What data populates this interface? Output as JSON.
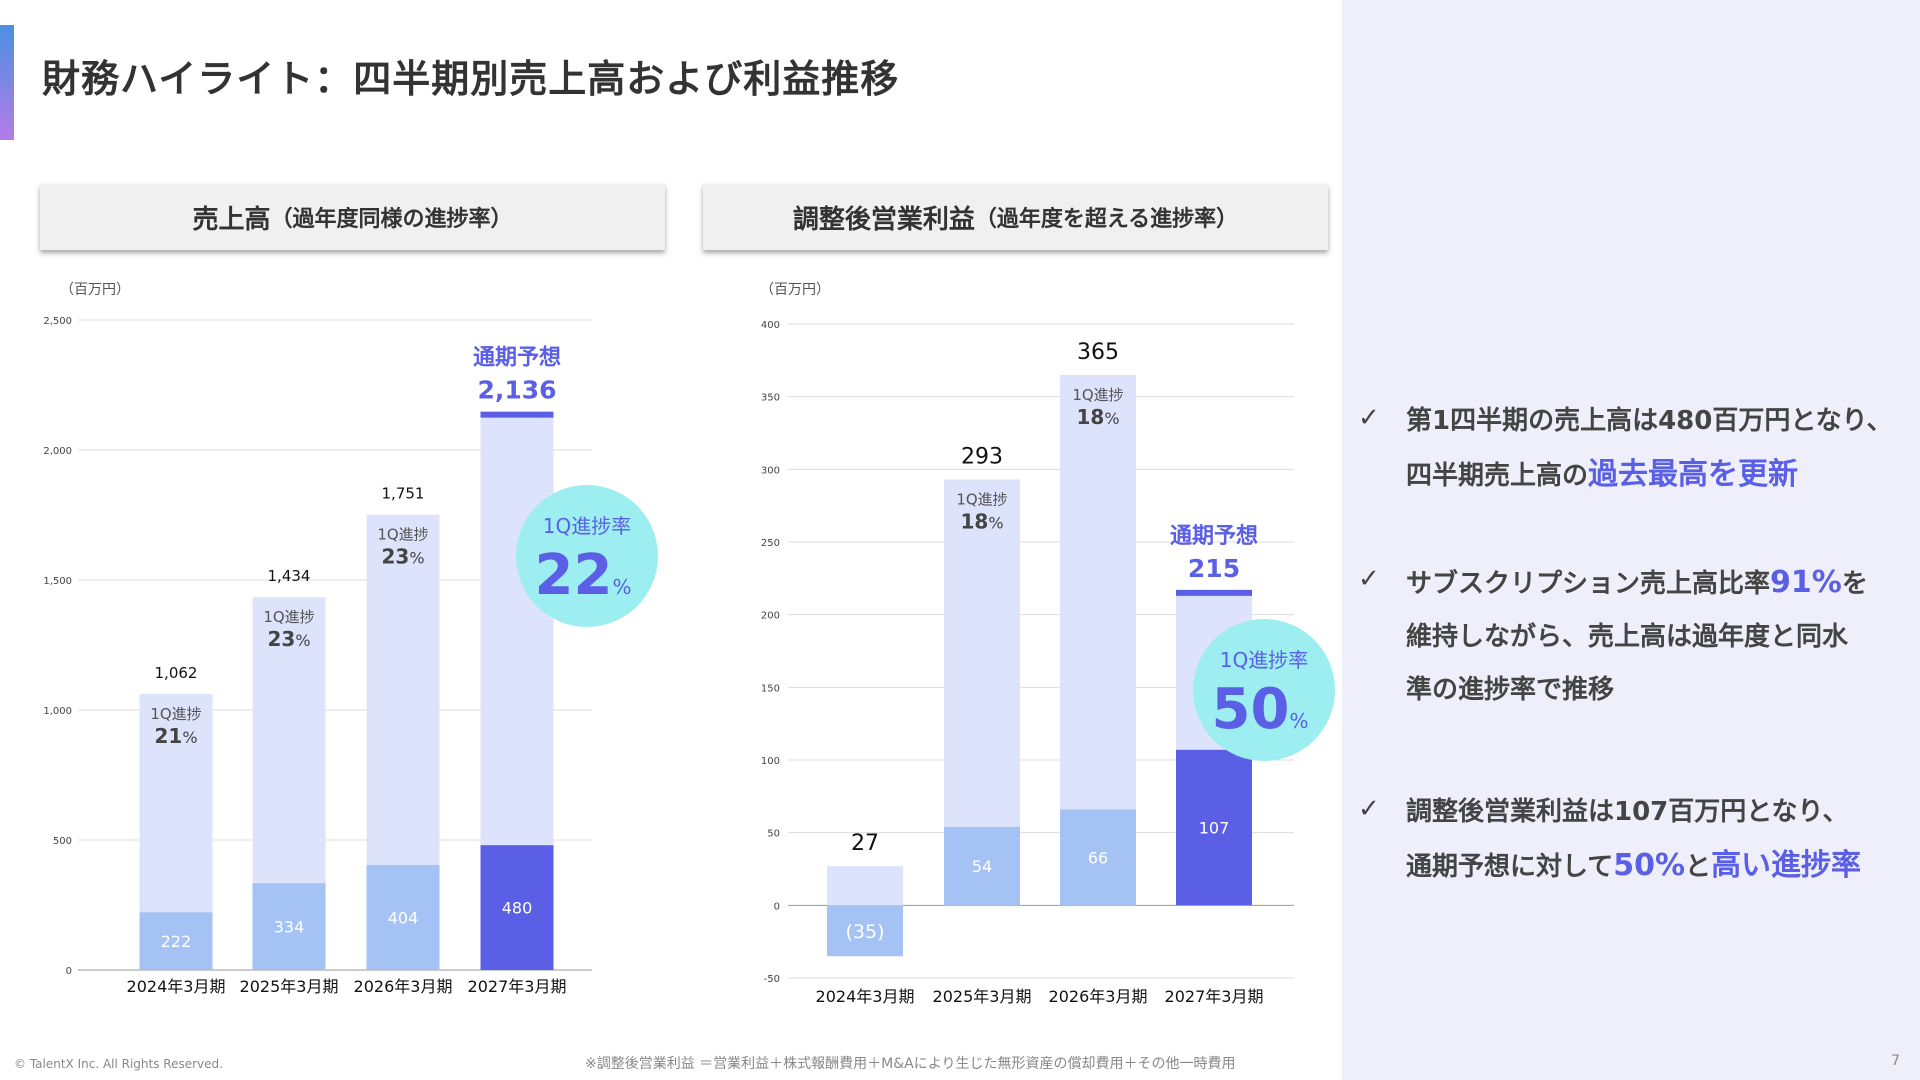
{
  "title": "財務ハイライト：四半期別売上高および利益推移",
  "panels": {
    "revenue_main": "売上高",
    "revenue_sub": "（過年度同様の進捗率）",
    "profit_main": "調整後営業利益",
    "profit_sub": "（過年度を超える進捗率）"
  },
  "colors": {
    "accent": "#5b5fe6",
    "q1_light": "#a4c3f4",
    "full_light": "#dde3fb",
    "bubble": "#9deef0"
  },
  "chart_data": [
    {
      "type": "bar",
      "title": "売上高",
      "unit": "（百万円）",
      "categories": [
        "2024年3月期",
        "2025年3月期",
        "2026年3月期",
        "2027年3月期"
      ],
      "series": [
        {
          "values": [
            1062,
            1434,
            1751,
            2136
          ],
          "labels": [
            "1,062",
            "1,434",
            "1,751",
            "2,136"
          ]
        },
        {
          "values": [
            222,
            334,
            404,
            480
          ],
          "labels": [
            "222",
            "334",
            "404",
            "480"
          ]
        }
      ],
      "progress_label": "1Q進捗",
      "progress": [
        "21",
        "23",
        "23",
        "22"
      ],
      "forecast_label": "通期予想",
      "bubble_label": "1Q進捗率",
      "ylim": [
        0,
        2500
      ],
      "yticks": [
        0,
        500,
        1000,
        1500,
        2000,
        2500
      ],
      "yticklabels": [
        "0",
        "500",
        "1,000",
        "1,500",
        "2,000",
        "2,500"
      ]
    },
    {
      "type": "bar",
      "title": "調整後営業利益",
      "unit": "（百万円）",
      "categories": [
        "2024年3月期",
        "2025年3月期",
        "2026年3月期",
        "2027年3月期"
      ],
      "series": [
        {
          "values": [
            27,
            293,
            365,
            215
          ],
          "labels": [
            "27",
            "293",
            "365",
            "215"
          ]
        },
        {
          "values": [
            -35,
            54,
            66,
            107
          ],
          "labels": [
            "(35)",
            "54",
            "66",
            "107"
          ]
        }
      ],
      "progress_label": "1Q進捗",
      "progress": [
        null,
        "18",
        "18",
        "50"
      ],
      "forecast_label": "通期予想",
      "bubble_label": "1Q進捗率",
      "ylim": [
        -50,
        400
      ],
      "yticks": [
        -50,
        0,
        50,
        100,
        150,
        200,
        250,
        300,
        350,
        400
      ],
      "yticklabels": [
        "-50",
        "0",
        "50",
        "100",
        "150",
        "200",
        "250",
        "300",
        "350",
        "400"
      ]
    }
  ],
  "bullets": [
    {
      "check": "✓",
      "parts": [
        {
          "text": "第1四半期の売上高は480百万円となり、"
        },
        {
          "text": "四半期売上高の",
          "br": true
        },
        {
          "text": "過去最高を更新",
          "hl": true
        }
      ]
    },
    {
      "check": "✓",
      "parts": [
        {
          "text": "サブスクリプション売上高比率"
        },
        {
          "text": "91%",
          "hl": true
        },
        {
          "text": "を"
        },
        {
          "text": "維持しながら、売上高は過年度と同水",
          "br": true
        },
        {
          "text": "準の進捗率で推移",
          "br": true
        }
      ]
    },
    {
      "check": "✓",
      "parts": [
        {
          "text": "調整後営業利益は107百万円となり、"
        },
        {
          "text": "通期予想に対して",
          "br": true
        },
        {
          "text": "50%",
          "hl": true
        },
        {
          "text": "と"
        },
        {
          "text": "高い進捗率",
          "hl": true
        }
      ]
    }
  ],
  "footer": {
    "copyright": "© TalentX Inc. All Rights Reserved.",
    "note": "※調整後営業利益 ＝営業利益＋株式報酬費用＋M&Aにより生じた無形資産の償却費用＋その他一時費用",
    "page": "7"
  }
}
